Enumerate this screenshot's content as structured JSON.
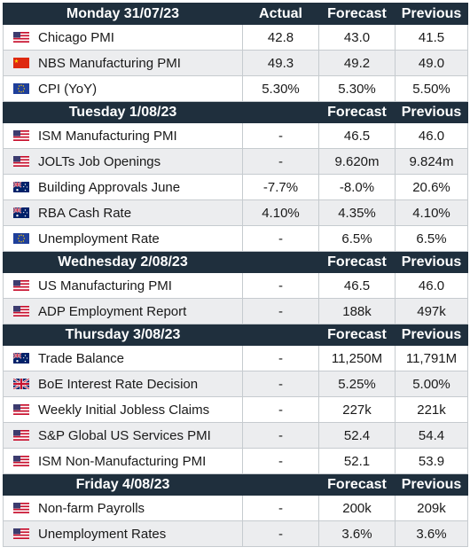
{
  "columns": {
    "actual": "Actual",
    "forecast": "Forecast",
    "previous": "Previous"
  },
  "days": [
    {
      "title": "Monday  31/07/23",
      "show_actual": true,
      "events": [
        {
          "flag": "us-flag-icon",
          "name": "Chicago PMI",
          "actual": "42.8",
          "forecast": "43.0",
          "previous": "41.5"
        },
        {
          "flag": "cn-flag-icon",
          "name": "NBS Manufacturing PMI",
          "actual": "49.3",
          "forecast": "49.2",
          "previous": "49.0"
        },
        {
          "flag": "eu-flag-icon",
          "name": "CPI (YoY)",
          "actual": "5.30%",
          "forecast": "5.30%",
          "previous": "5.50%"
        }
      ]
    },
    {
      "title": "Tuesday  1/08/23",
      "show_actual": false,
      "events": [
        {
          "flag": "us-flag-icon",
          "name": "ISM Manufacturing PMI",
          "actual": "-",
          "forecast": "46.5",
          "previous": "46.0"
        },
        {
          "flag": "us-flag-icon",
          "name": "JOLTs Job Openings",
          "actual": "-",
          "forecast": "9.620m",
          "previous": "9.824m"
        },
        {
          "flag": "au-flag-icon",
          "name": "Building Approvals June",
          "actual": "-7.7%",
          "forecast": "-8.0%",
          "previous": "20.6%"
        },
        {
          "flag": "au-flag-icon",
          "name": "RBA Cash Rate",
          "actual": "4.10%",
          "forecast": "4.35%",
          "previous": "4.10%"
        },
        {
          "flag": "eu-flag-icon",
          "name": "Unemployment Rate",
          "actual": "-",
          "forecast": "6.5%",
          "previous": "6.5%"
        }
      ]
    },
    {
      "title": "Wednesday  2/08/23",
      "show_actual": false,
      "events": [
        {
          "flag": "us-flag-icon",
          "name": "US Manufacturing PMI",
          "actual": "-",
          "forecast": "46.5",
          "previous": "46.0"
        },
        {
          "flag": "us-flag-icon",
          "name": "ADP Employment Report",
          "actual": "-",
          "forecast": "188k",
          "previous": "497k"
        }
      ]
    },
    {
      "title": "Thursday  3/08/23",
      "show_actual": false,
      "events": [
        {
          "flag": "au-flag-icon",
          "name": "Trade Balance",
          "actual": "-",
          "forecast": "11,250M",
          "previous": "11,791M"
        },
        {
          "flag": "uk-flag-icon",
          "name": "BoE Interest Rate Decision",
          "actual": "-",
          "forecast": "5.25%",
          "previous": "5.00%"
        },
        {
          "flag": "us-flag-icon",
          "name": "Weekly Initial Jobless Claims",
          "actual": "-",
          "forecast": "227k",
          "previous": "221k"
        },
        {
          "flag": "us-flag-icon",
          "name": "S&P Global US Services PMI",
          "actual": "-",
          "forecast": "52.4",
          "previous": "54.4"
        },
        {
          "flag": "us-flag-icon",
          "name": "ISM Non-Manufacturing PMI",
          "actual": "-",
          "forecast": "52.1",
          "previous": "53.9"
        }
      ]
    },
    {
      "title": "Friday  4/08/23",
      "show_actual": false,
      "events": [
        {
          "flag": "us-flag-icon",
          "name": "Non-farm Payrolls",
          "actual": "-",
          "forecast": "200k",
          "previous": "209k"
        },
        {
          "flag": "us-flag-icon",
          "name": "Unemployment Rates",
          "actual": "-",
          "forecast": "3.6%",
          "previous": "3.6%"
        }
      ]
    }
  ]
}
